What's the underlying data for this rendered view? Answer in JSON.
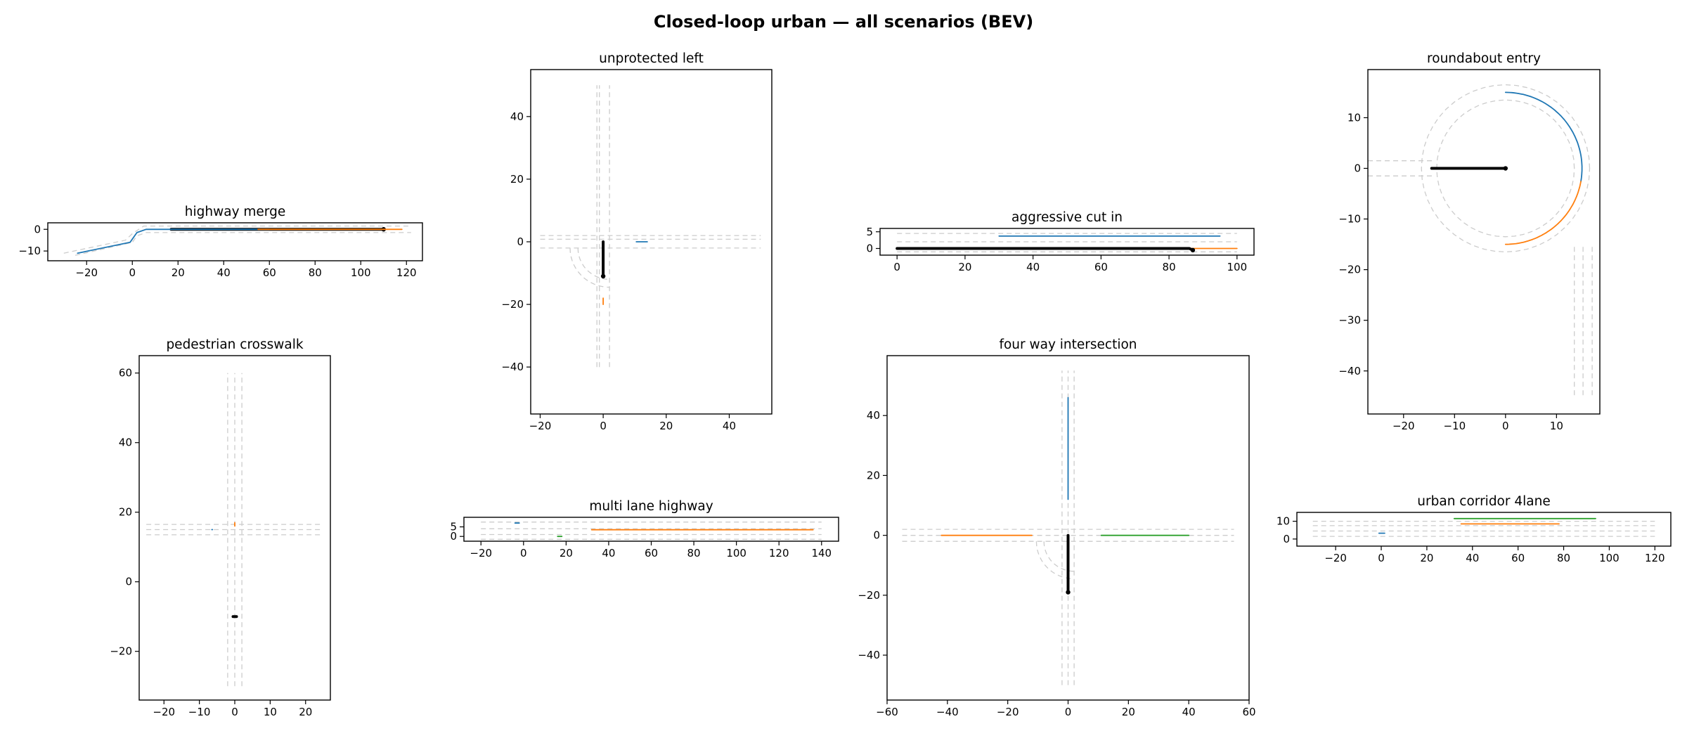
{
  "figure": {
    "suptitle": "Closed-loop urban — all scenarios (BEV)"
  },
  "colors": {
    "ego": "#000000",
    "agent_1": "#1f77b4",
    "agent_2": "#ff7f0e",
    "agent_3": "#2ca02c",
    "road": "#cccccc"
  },
  "chart_data": [
    {
      "name": "highway-merge",
      "type": "line",
      "title": "highway merge",
      "xlim": [
        -37,
        127
      ],
      "ylim": [
        -14.5,
        3
      ],
      "xticks": [
        -20,
        0,
        20,
        40,
        60,
        80,
        100,
        120
      ],
      "yticks": [
        -10,
        0
      ],
      "road": [
        {
          "pts": [
            [
              -25,
              -12
            ],
            [
              0,
              -6
            ],
            [
              2,
              -3
            ],
            [
              6,
              -1.5
            ],
            [
              122,
              -1.5
            ]
          ]
        },
        {
          "pts": [
            [
              -30,
              -11
            ],
            [
              -3,
              -5
            ],
            [
              0,
              -2
            ],
            [
              5,
              1.5
            ],
            [
              122,
              1.5
            ]
          ]
        }
      ],
      "series": [
        {
          "role": "ego",
          "color": "ego",
          "pts": [
            [
              17,
              0
            ],
            [
              110,
              0
            ]
          ],
          "marker": true
        },
        {
          "color": "agent_1",
          "pts": [
            [
              -24,
              -11
            ],
            [
              -1,
              -6
            ],
            [
              2,
              -1.5
            ],
            [
              6,
              0
            ],
            [
              60,
              0
            ]
          ]
        },
        {
          "color": "agent_2",
          "pts": [
            [
              55,
              0
            ],
            [
              118,
              0
            ]
          ]
        }
      ]
    },
    {
      "name": "unprotected-left",
      "type": "line",
      "title": "unprotected left",
      "xlim": [
        -23,
        53.5
      ],
      "ylim": [
        -55,
        55
      ],
      "xticks": [
        -20,
        0,
        20,
        40
      ],
      "yticks": [
        -40,
        -20,
        0,
        20,
        40
      ],
      "road": [
        {
          "pts": [
            [
              -2,
              -40
            ],
            [
              -2,
              50
            ]
          ]
        },
        {
          "pts": [
            [
              2,
              -40
            ],
            [
              2,
              50
            ]
          ]
        },
        {
          "pts": [
            [
              -1.2,
              -40
            ],
            [
              -1.2,
              50
            ]
          ]
        },
        {
          "pts": [
            [
              -20,
              2
            ],
            [
              50,
              2
            ]
          ]
        },
        {
          "pts": [
            [
              -20,
              -2
            ],
            [
              50,
              -2
            ]
          ]
        },
        {
          "pts": [
            [
              -20,
              0.8
            ],
            [
              50,
              0.8
            ]
          ]
        },
        {
          "arc": [
            2,
            -2,
            10,
            180,
            270
          ]
        },
        {
          "arc": [
            2,
            -2,
            12.5,
            180,
            270
          ]
        }
      ],
      "series": [
        {
          "role": "ego",
          "color": "ego",
          "pts": [
            [
              0,
              0
            ],
            [
              0,
              -11
            ]
          ],
          "marker": true
        },
        {
          "color": "agent_1",
          "pts": [
            [
              10.5,
              0
            ],
            [
              14,
              0
            ]
          ]
        },
        {
          "color": "agent_2",
          "pts": [
            [
              0,
              -18
            ],
            [
              0,
              -20
            ]
          ]
        }
      ]
    },
    {
      "name": "aggressive-cut-in",
      "type": "line",
      "title": "aggressive cut in",
      "xlim": [
        -5,
        105
      ],
      "ylim": [
        -2,
        6
      ],
      "xticks": [
        0,
        20,
        40,
        60,
        80,
        100
      ],
      "yticks": [
        0,
        5
      ],
      "road": [
        {
          "pts": [
            [
              0,
              4.5
            ],
            [
              100,
              4.5
            ]
          ]
        },
        {
          "pts": [
            [
              0,
              2
            ],
            [
              100,
              2
            ]
          ]
        },
        {
          "pts": [
            [
              0,
              -1
            ],
            [
              100,
              -1
            ]
          ]
        }
      ],
      "series": [
        {
          "color": "agent_1",
          "pts": [
            [
              30,
              3.7
            ],
            [
              95,
              3.7
            ]
          ]
        },
        {
          "color": "agent_2",
          "pts": [
            [
              55,
              0
            ],
            [
              100,
              0
            ]
          ]
        },
        {
          "role": "ego",
          "color": "ego",
          "pts": [
            [
              0,
              0
            ],
            [
              86,
              0
            ],
            [
              87,
              -0.5
            ]
          ],
          "marker": true
        }
      ]
    },
    {
      "name": "roundabout-entry",
      "type": "line",
      "title": "roundabout entry",
      "xlim": [
        -27,
        18.5
      ],
      "ylim": [
        -48.5,
        19.5
      ],
      "xticks": [
        -20,
        -10,
        0,
        10
      ],
      "yticks": [
        -40,
        -30,
        -20,
        -10,
        0,
        10
      ],
      "road": [
        {
          "arc": [
            0,
            0,
            13.5,
            0,
            360
          ]
        },
        {
          "arc": [
            0,
            0,
            16.5,
            0,
            360
          ]
        },
        {
          "pts": [
            [
              -27,
              1.5
            ],
            [
              -14,
              1.5
            ]
          ]
        },
        {
          "pts": [
            [
              -27,
              -1.5
            ],
            [
              -14,
              -1.5
            ]
          ]
        },
        {
          "pts": [
            [
              13.5,
              -15.5
            ],
            [
              13.5,
              -45
            ]
          ]
        },
        {
          "pts": [
            [
              17,
              -15.5
            ],
            [
              17,
              -45
            ]
          ]
        },
        {
          "pts": [
            [
              15.2,
              -15.5
            ],
            [
              15.2,
              -45
            ]
          ]
        }
      ],
      "series": [
        {
          "color": "agent_1",
          "arc": [
            0,
            0,
            15,
            90,
            -10,
            60
          ]
        },
        {
          "color": "agent_2",
          "arc": [
            0,
            0,
            15,
            -10,
            -90,
            60
          ]
        },
        {
          "role": "ego",
          "color": "ego",
          "pts": [
            [
              -14.5,
              0
            ],
            [
              0,
              0
            ]
          ],
          "marker": true
        }
      ]
    },
    {
      "name": "pedestrian-crosswalk",
      "type": "line",
      "title": "pedestrian crosswalk",
      "xlim": [
        -27,
        27
      ],
      "ylim": [
        -34,
        65
      ],
      "xticks": [
        -20,
        -10,
        0,
        10,
        20
      ],
      "yticks": [
        -20,
        0,
        20,
        40,
        60
      ],
      "road": [
        {
          "pts": [
            [
              -2,
              -30
            ],
            [
              -2,
              60
            ]
          ]
        },
        {
          "pts": [
            [
              2,
              -30
            ],
            [
              2,
              60
            ]
          ]
        },
        {
          "pts": [
            [
              0,
              -30
            ],
            [
              0,
              60
            ]
          ]
        },
        {
          "pts": [
            [
              -25,
              16.5
            ],
            [
              25,
              16.5
            ]
          ]
        },
        {
          "pts": [
            [
              -25,
              13.5
            ],
            [
              25,
              13.5
            ]
          ]
        },
        {
          "pts": [
            [
              -25,
              15
            ],
            [
              25,
              15
            ]
          ]
        }
      ],
      "series": [
        {
          "color": "agent_1",
          "pts": [
            [
              -6.5,
              15
            ],
            [
              -6.3,
              15
            ]
          ]
        },
        {
          "color": "agent_2",
          "pts": [
            [
              0,
              16
            ],
            [
              0,
              17
            ]
          ]
        },
        {
          "role": "ego",
          "color": "ego",
          "pts": [
            [
              -0.5,
              -10
            ],
            [
              0.5,
              -10
            ]
          ],
          "marker": false
        }
      ]
    },
    {
      "name": "multi-lane-highway",
      "type": "line",
      "title": "multi lane highway",
      "xlim": [
        -28,
        148
      ],
      "ylim": [
        -2.5,
        10
      ],
      "xticks": [
        -20,
        0,
        20,
        40,
        60,
        80,
        100,
        120,
        140
      ],
      "yticks": [
        0,
        5
      ],
      "road": [
        {
          "pts": [
            [
              -20,
              7.5
            ],
            [
              140,
              7.5
            ]
          ]
        },
        {
          "pts": [
            [
              -20,
              4
            ],
            [
              140,
              4
            ]
          ]
        },
        {
          "pts": [
            [
              -20,
              1
            ],
            [
              140,
              1
            ]
          ]
        },
        {
          "pts": [
            [
              -20,
              -1.5
            ],
            [
              140,
              -1.5
            ]
          ]
        }
      ],
      "series": [
        {
          "color": "agent_1",
          "pts": [
            [
              -4,
              7
            ],
            [
              -2,
              7
            ]
          ]
        },
        {
          "color": "agent_2",
          "pts": [
            [
              32,
              3.5
            ],
            [
              136,
              3.5
            ]
          ]
        },
        {
          "color": "agent_3",
          "pts": [
            [
              16,
              0
            ],
            [
              18,
              0
            ]
          ]
        }
      ]
    },
    {
      "name": "four-way-intersection",
      "type": "line",
      "title": "four way intersection",
      "xlim": [
        -60,
        60
      ],
      "ylim": [
        -55,
        60
      ],
      "xticks": [
        -60,
        -40,
        -20,
        0,
        20,
        40,
        60
      ],
      "yticks": [
        -40,
        -20,
        0,
        20,
        40
      ],
      "road": [
        {
          "pts": [
            [
              -2,
              -50
            ],
            [
              -2,
              55
            ]
          ]
        },
        {
          "pts": [
            [
              2,
              -50
            ],
            [
              2,
              55
            ]
          ]
        },
        {
          "pts": [
            [
              0,
              -50
            ],
            [
              0,
              55
            ]
          ]
        },
        {
          "pts": [
            [
              -55,
              2
            ],
            [
              55,
              2
            ]
          ]
        },
        {
          "pts": [
            [
              -55,
              -2
            ],
            [
              55,
              -2
            ]
          ]
        },
        {
          "pts": [
            [
              -55,
              0
            ],
            [
              55,
              0
            ]
          ]
        },
        {
          "arc": [
            2,
            -2,
            10,
            180,
            270
          ]
        },
        {
          "arc": [
            2,
            -2,
            12.5,
            180,
            270
          ]
        }
      ],
      "series": [
        {
          "color": "agent_1",
          "pts": [
            [
              0,
              46
            ],
            [
              0,
              12
            ]
          ]
        },
        {
          "color": "agent_2",
          "pts": [
            [
              -42,
              0
            ],
            [
              -12,
              0
            ]
          ]
        },
        {
          "color": "agent_3",
          "pts": [
            [
              11,
              0
            ],
            [
              40,
              0
            ]
          ]
        },
        {
          "role": "ego",
          "color": "ego",
          "pts": [
            [
              0,
              0
            ],
            [
              0,
              -19
            ]
          ],
          "marker": true
        }
      ]
    },
    {
      "name": "urban-corridor-4lane",
      "type": "line",
      "title": "urban corridor 4lane",
      "xlim": [
        -37,
        127
      ],
      "ylim": [
        -4,
        15
      ],
      "xticks": [
        -20,
        0,
        20,
        40,
        60,
        80,
        100,
        120
      ],
      "yticks": [
        0,
        10
      ],
      "road": [
        {
          "pts": [
            [
              -30,
              10
            ],
            [
              120,
              10
            ]
          ]
        },
        {
          "pts": [
            [
              -30,
              7.5
            ],
            [
              120,
              7.5
            ]
          ]
        },
        {
          "pts": [
            [
              -30,
              4.5
            ],
            [
              120,
              4.5
            ]
          ]
        },
        {
          "pts": [
            [
              -30,
              1.5
            ],
            [
              120,
              1.5
            ]
          ]
        }
      ],
      "series": [
        {
          "color": "agent_3",
          "pts": [
            [
              32,
              11.5
            ],
            [
              94,
              11.5
            ]
          ]
        },
        {
          "color": "agent_2",
          "pts": [
            [
              35,
              8.5
            ],
            [
              78,
              8.5
            ]
          ]
        },
        {
          "color": "agent_1",
          "pts": [
            [
              -1,
              3.3
            ],
            [
              1.5,
              3.3
            ]
          ]
        }
      ]
    }
  ]
}
